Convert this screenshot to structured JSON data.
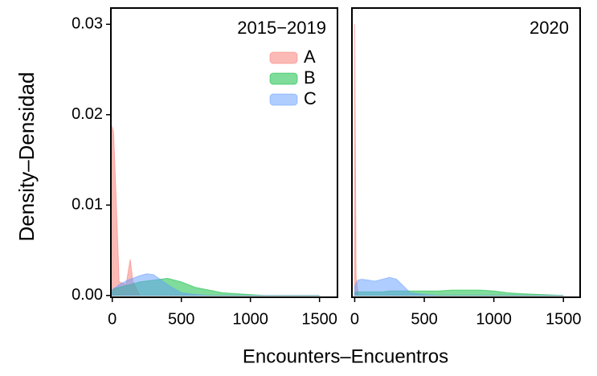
{
  "chart_data": [
    {
      "type": "area",
      "title": "2015−2019",
      "ylabel": "Density–Densidad",
      "xlabel": "Encounters–Encuentros",
      "legend": "top-right",
      "opacity": 0.5,
      "x": [
        0,
        10,
        25,
        50,
        100,
        130,
        150,
        200,
        250,
        300,
        400,
        500,
        600,
        700,
        800,
        900,
        1000,
        1100,
        1200,
        1500
      ],
      "series": [
        {
          "name": "A",
          "color": "#f8766d",
          "values": [
            0.0187,
            0.018,
            0.012,
            0.0015,
            0.0012,
            0.004,
            0.0015,
            0,
            0,
            0,
            0,
            0,
            0,
            0,
            0,
            0,
            0,
            0,
            0,
            0
          ]
        },
        {
          "name": "B",
          "color": "#00ba38",
          "values": [
            0.0006,
            0.0007,
            0.0008,
            0.0009,
            0.0011,
            0.0012,
            0.0013,
            0.0015,
            0.0016,
            0.0017,
            0.0019,
            0.0015,
            0.0009,
            0.0006,
            0.0003,
            0.0002,
            0.0001,
            0,
            0,
            0
          ]
        },
        {
          "name": "C",
          "color": "#619cff",
          "values": [
            0.0006,
            0.0008,
            0.0009,
            0.0012,
            0.0016,
            0.0018,
            0.0019,
            0.0022,
            0.0024,
            0.0023,
            0.0012,
            0.0003,
            0.0001,
            0,
            0,
            0,
            0,
            0,
            0,
            0
          ]
        }
      ],
      "xlim": [
        -10,
        1630
      ],
      "ylim": [
        -0.0002,
        0.0318
      ],
      "xticks": [
        0,
        500,
        1000,
        1500
      ],
      "yticks": [
        {
          "value": 0,
          "label": "0.00"
        },
        0.01,
        0.02,
        0.03
      ]
    },
    {
      "type": "area",
      "title": "2020",
      "opacity": 0.5,
      "x": [
        0,
        10,
        25,
        50,
        100,
        130,
        150,
        200,
        250,
        300,
        400,
        500,
        600,
        700,
        800,
        900,
        1000,
        1100,
        1200,
        1500
      ],
      "series": [
        {
          "color": "#f8766d",
          "values": [
            0.03,
            0.002,
            0,
            0,
            0,
            0,
            0,
            0,
            0,
            0,
            0,
            0,
            0,
            0,
            0,
            0,
            0,
            0,
            0,
            0
          ]
        },
        {
          "color": "#00ba38",
          "values": [
            0.0003,
            0.0004,
            0.0004,
            0.0004,
            0.0004,
            0.0004,
            0.0004,
            0.0004,
            0.0005,
            0.0005,
            0.0005,
            0.0005,
            0.0005,
            0.0006,
            0.0006,
            0.0006,
            0.0005,
            0.0003,
            0.0002,
            0
          ]
        },
        {
          "color": "#619cff",
          "values": [
            0.001,
            0.0014,
            0.0017,
            0.0018,
            0.0017,
            0.0016,
            0.0016,
            0.0018,
            0.002,
            0.0018,
            0.0003,
            0.0001,
            0,
            0,
            0,
            0,
            0,
            0,
            0,
            0
          ]
        }
      ],
      "xlim": [
        -20,
        1620
      ],
      "ylim": [
        -0.0002,
        0.0318
      ],
      "xticks": [
        0,
        500,
        1000,
        1500
      ]
    }
  ]
}
